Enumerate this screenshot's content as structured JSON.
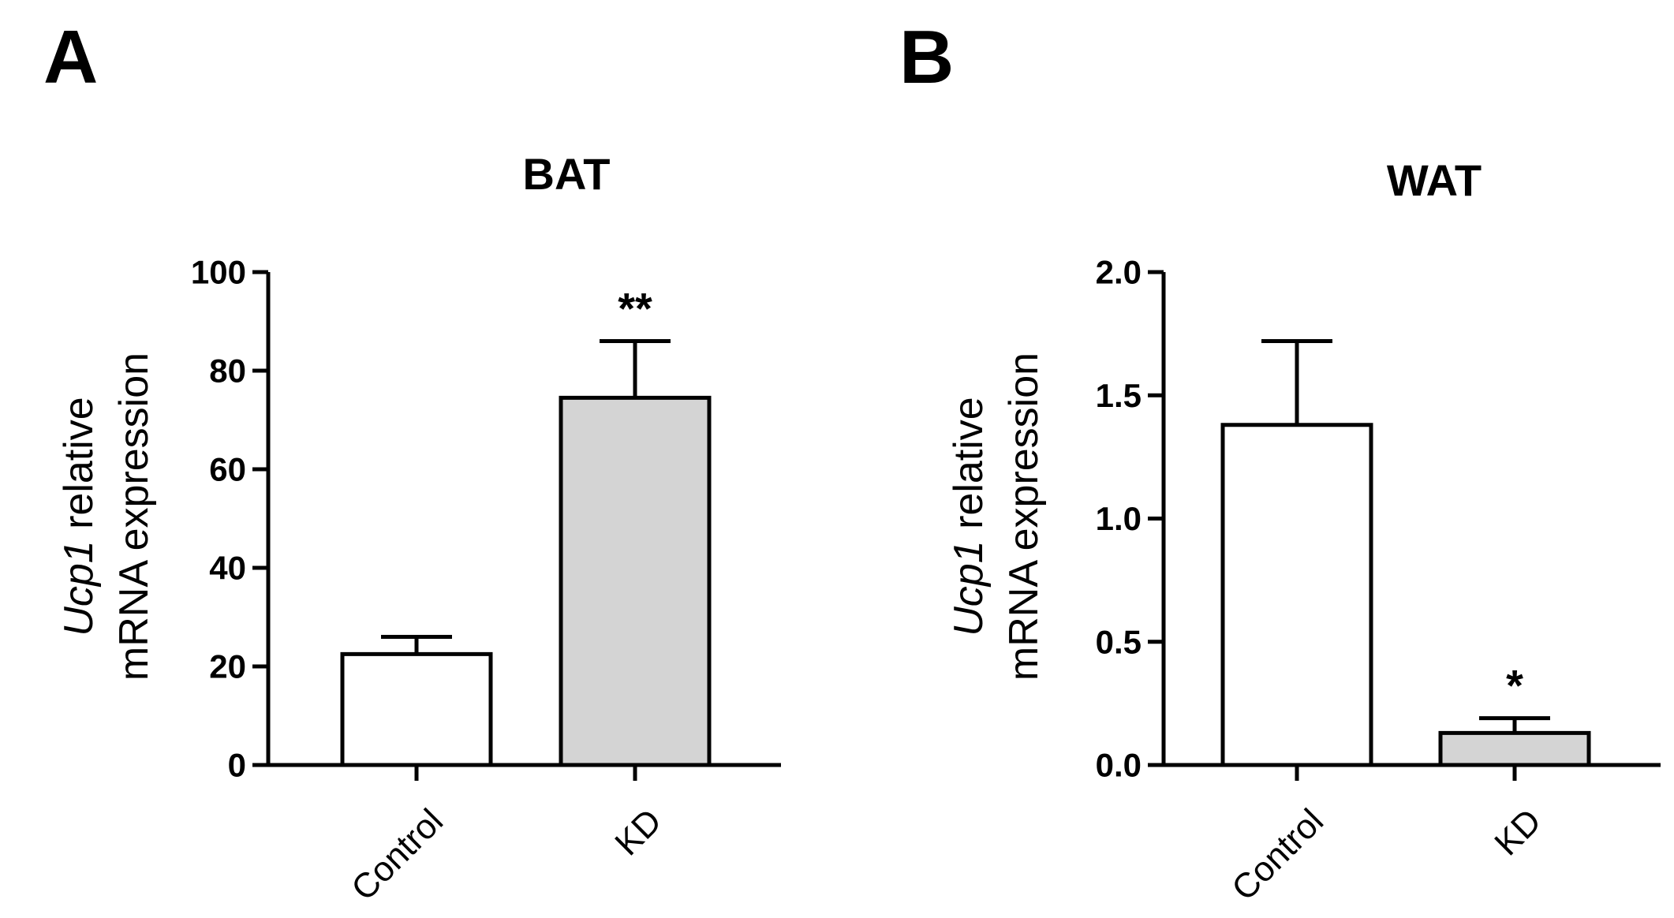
{
  "chart_data": [
    {
      "panel": "A",
      "type": "bar",
      "title": "BAT",
      "ylabel_italic": "Ucp1",
      "ylabel_rest": " relative",
      "ylabel_line2": "mRNA expression",
      "xlabel": "",
      "ylim": [
        0,
        100
      ],
      "yticks": [
        0,
        20,
        40,
        60,
        80,
        100
      ],
      "ytick_labels": [
        "0",
        "20",
        "40",
        "60",
        "80",
        "100"
      ],
      "categories": [
        "Control",
        "KD"
      ],
      "values": [
        22.5,
        74.5
      ],
      "errors": [
        3.5,
        11.5
      ],
      "significance": [
        "",
        "**"
      ],
      "bar_colors": [
        "#ffffff",
        "#d4d4d4"
      ]
    },
    {
      "panel": "B",
      "type": "bar",
      "title": "WAT",
      "ylabel_italic": "Ucp1",
      "ylabel_rest": " relative",
      "ylabel_line2": "mRNA expression",
      "xlabel": "",
      "ylim": [
        0,
        2.0
      ],
      "yticks": [
        0,
        0.5,
        1.0,
        1.5,
        2.0
      ],
      "ytick_labels": [
        "0.0",
        "0.5",
        "1.0",
        "1.5",
        "2.0"
      ],
      "categories": [
        "Control",
        "KD"
      ],
      "values": [
        1.38,
        0.13
      ],
      "errors": [
        0.34,
        0.06
      ],
      "significance": [
        "",
        "*"
      ],
      "bar_colors": [
        "#ffffff",
        "#d4d4d4"
      ]
    }
  ]
}
